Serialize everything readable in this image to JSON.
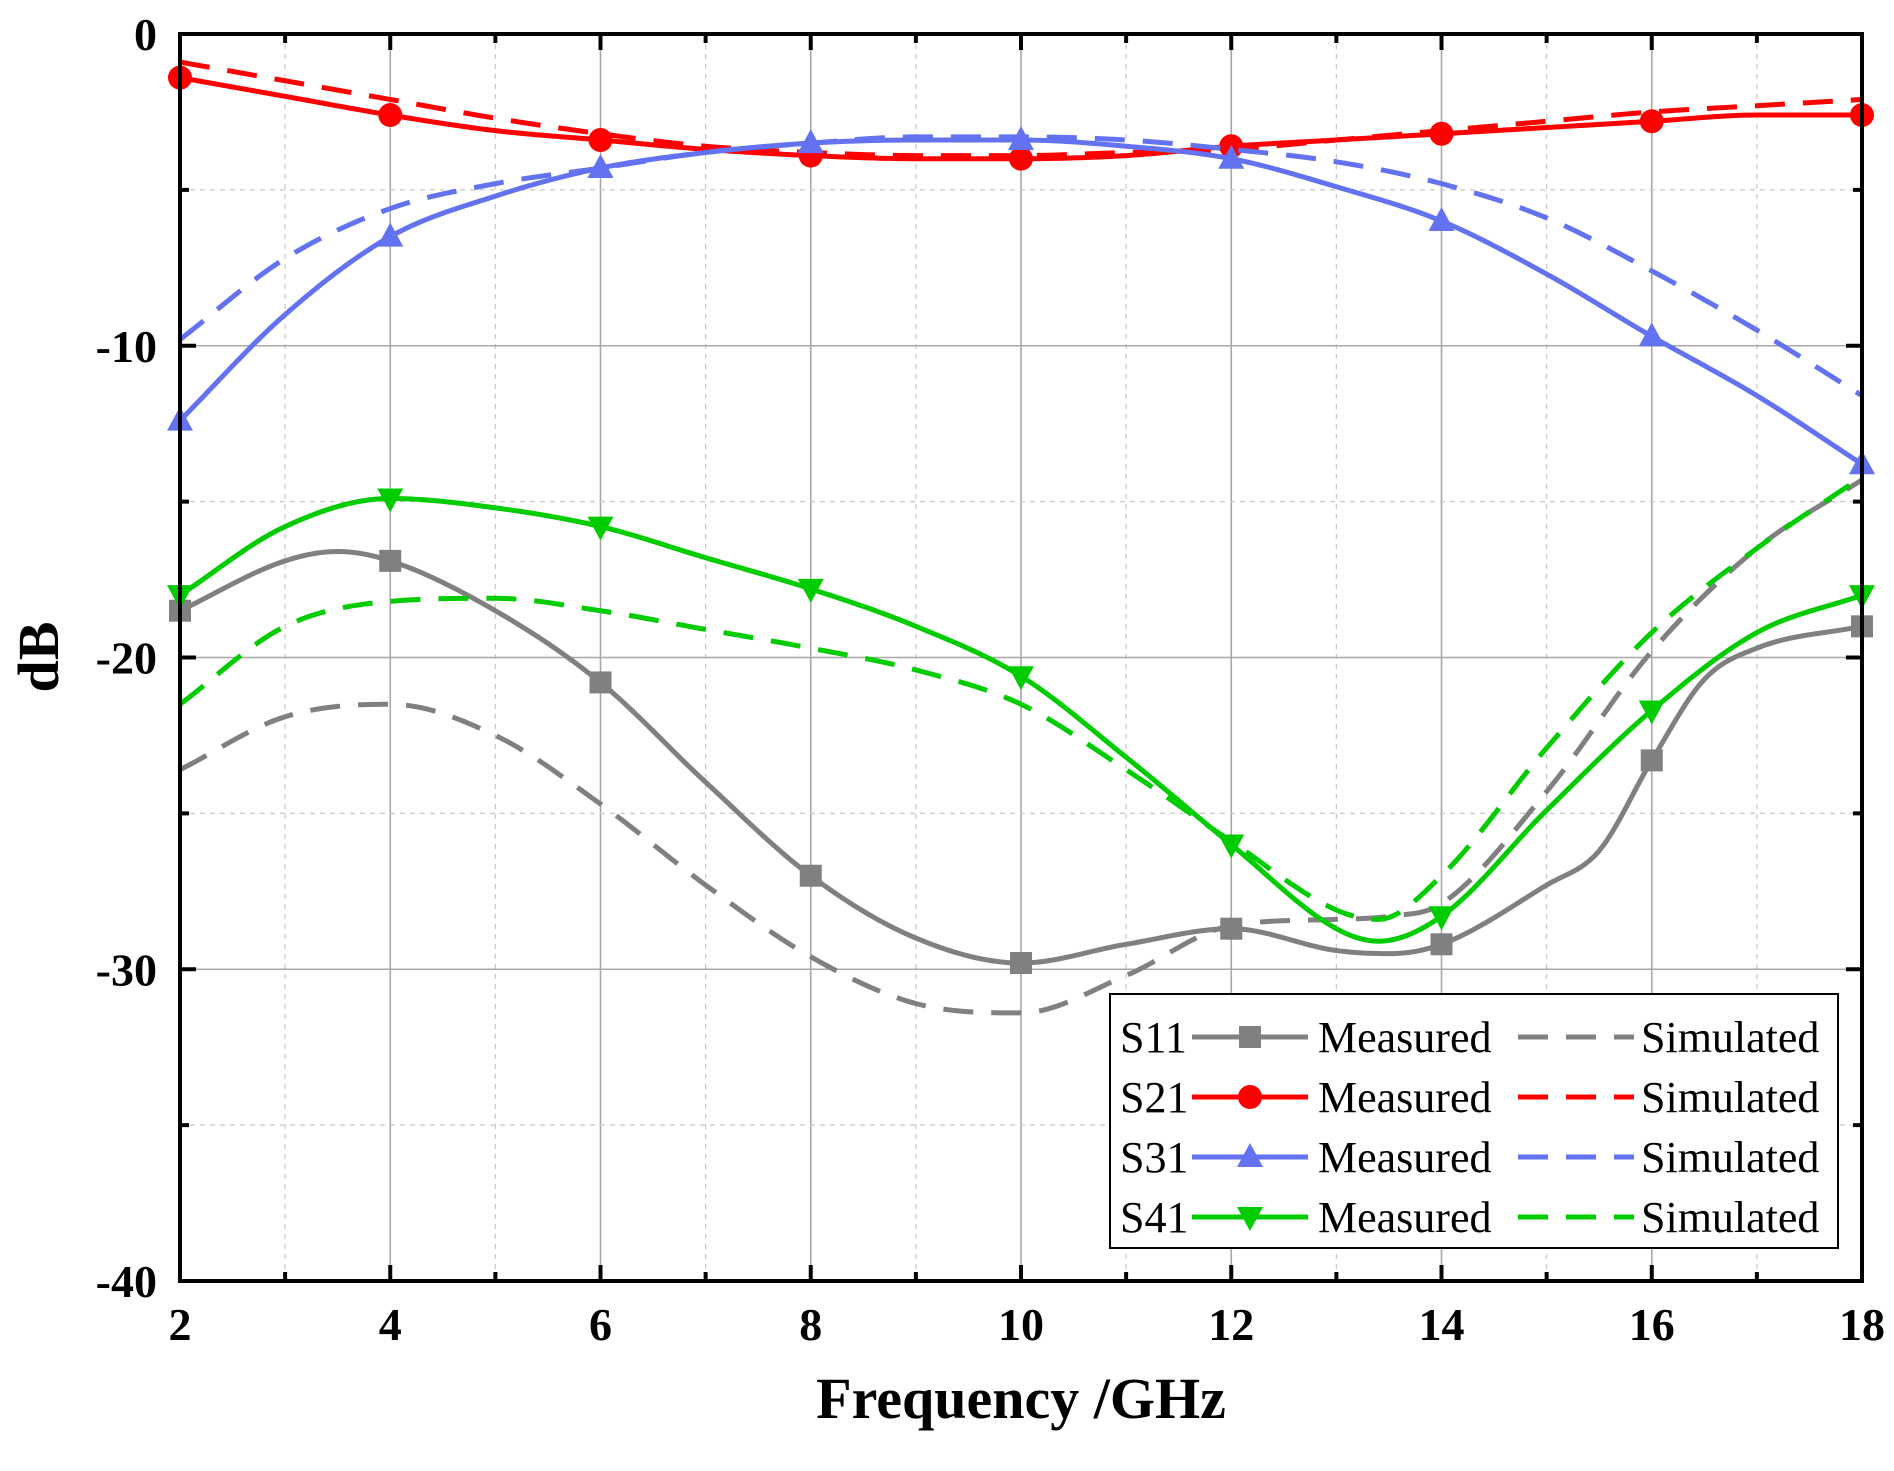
{
  "chart_data": {
    "type": "line",
    "title": "",
    "xlabel": "Frequency /GHz",
    "ylabel": "dB",
    "xlim": [
      2,
      18
    ],
    "ylim": [
      -40,
      0
    ],
    "xticks": [
      2,
      4,
      6,
      8,
      10,
      12,
      14,
      16,
      18
    ],
    "yticks": [
      0,
      -10,
      -20,
      -30,
      -40
    ],
    "grid": true,
    "legend_position": "bottom-right",
    "legend_measured_label": "Measured",
    "legend_simulated_label": "Simulated",
    "series": [
      {
        "name": "S11",
        "color": "#808080",
        "marker": "square",
        "measured": {
          "x": [
            2,
            3,
            3.5,
            4,
            5,
            6,
            7,
            8,
            9,
            10,
            11,
            12,
            13,
            13.5,
            14,
            15,
            15.5,
            16,
            16.5,
            17,
            18
          ],
          "y": [
            -18.5,
            -16.9,
            -16.6,
            -16.9,
            -18.5,
            -20.8,
            -24.0,
            -27.0,
            -29.0,
            -29.8,
            -29.2,
            -28.7,
            -29.4,
            -29.5,
            -29.2,
            -27.3,
            -26.2,
            -23.3,
            -20.7,
            -19.7,
            -19.0
          ]
        },
        "measured_markers_x": [
          2,
          4,
          6,
          8,
          10,
          12,
          14,
          16,
          18
        ],
        "simulated": {
          "x": [
            2,
            3,
            4,
            5,
            6,
            7,
            8,
            9,
            10,
            11,
            12,
            13,
            13.5,
            14,
            15,
            16,
            17,
            18
          ],
          "y": [
            -23.6,
            -21.9,
            -21.5,
            -22.5,
            -24.7,
            -27.3,
            -29.6,
            -31.1,
            -31.4,
            -30.2,
            -28.6,
            -28.4,
            -28.3,
            -27.9,
            -24.3,
            -19.8,
            -16.5,
            -14.3
          ]
        }
      },
      {
        "name": "S21",
        "color": "#ff0000",
        "marker": "circle",
        "measured": {
          "x": [
            2,
            3,
            4,
            5,
            6,
            7,
            8,
            9,
            10,
            11,
            12,
            13,
            14,
            15,
            16,
            17,
            18
          ],
          "y": [
            -1.4,
            -2.0,
            -2.6,
            -3.1,
            -3.4,
            -3.7,
            -3.9,
            -4.0,
            -4.0,
            -3.9,
            -3.6,
            -3.4,
            -3.2,
            -3.0,
            -2.8,
            -2.6,
            -2.6
          ]
        },
        "measured_markers_x": [
          2,
          4,
          6,
          8,
          10,
          12,
          14,
          16,
          18
        ],
        "simulated": {
          "x": [
            2,
            3,
            4,
            5,
            6,
            7,
            8,
            9,
            10,
            11,
            12,
            13,
            14,
            15,
            16,
            17,
            18
          ],
          "y": [
            -0.9,
            -1.5,
            -2.1,
            -2.7,
            -3.2,
            -3.6,
            -3.8,
            -3.9,
            -3.9,
            -3.8,
            -3.7,
            -3.4,
            -3.1,
            -2.8,
            -2.5,
            -2.3,
            -2.1
          ]
        }
      },
      {
        "name": "S31",
        "color": "#6372f0",
        "marker": "triangle-up",
        "measured": {
          "x": [
            2,
            3,
            4,
            5,
            6,
            7,
            8,
            9,
            10,
            11,
            12,
            13,
            14,
            15,
            16,
            17,
            18
          ],
          "y": [
            -12.4,
            -9.0,
            -6.5,
            -5.2,
            -4.3,
            -3.8,
            -3.5,
            -3.4,
            -3.4,
            -3.6,
            -4.0,
            -4.9,
            -6.0,
            -7.7,
            -9.7,
            -11.6,
            -13.8
          ]
        },
        "measured_markers_x": [
          2,
          4,
          6,
          8,
          10,
          12,
          14,
          16,
          18
        ],
        "simulated": {
          "x": [
            2,
            3,
            4,
            5,
            6,
            7,
            8,
            9,
            10,
            11,
            12,
            13,
            14,
            15,
            16,
            17,
            18
          ],
          "y": [
            -9.8,
            -7.2,
            -5.6,
            -4.8,
            -4.3,
            -3.8,
            -3.5,
            -3.3,
            -3.3,
            -3.4,
            -3.7,
            -4.1,
            -4.8,
            -5.9,
            -7.6,
            -9.5,
            -11.6
          ]
        }
      },
      {
        "name": "S41",
        "color": "#00cc00",
        "marker": "triangle-down",
        "measured": {
          "x": [
            2,
            3,
            4,
            5,
            6,
            7,
            8,
            9,
            10,
            11,
            12,
            13,
            13.4,
            14,
            15,
            16,
            17,
            18
          ],
          "y": [
            -18.0,
            -15.8,
            -14.9,
            -15.2,
            -15.8,
            -16.8,
            -17.8,
            -19.0,
            -20.6,
            -23.2,
            -26.0,
            -28.7,
            -29.1,
            -28.3,
            -24.9,
            -21.7,
            -19.2,
            -18.0
          ]
        },
        "measured_markers_x": [
          2,
          4,
          6,
          8,
          10,
          12,
          14,
          16,
          18
        ],
        "simulated": {
          "x": [
            2,
            3,
            4,
            5,
            6,
            7,
            8,
            9,
            10,
            11,
            12,
            13,
            13.4,
            14,
            15,
            16,
            17,
            18
          ],
          "y": [
            -21.5,
            -19.0,
            -18.2,
            -18.1,
            -18.5,
            -19.1,
            -19.7,
            -20.4,
            -21.5,
            -23.6,
            -25.9,
            -28.1,
            -28.4,
            -27.0,
            -22.9,
            -19.2,
            -16.5,
            -14.2
          ]
        }
      }
    ]
  }
}
